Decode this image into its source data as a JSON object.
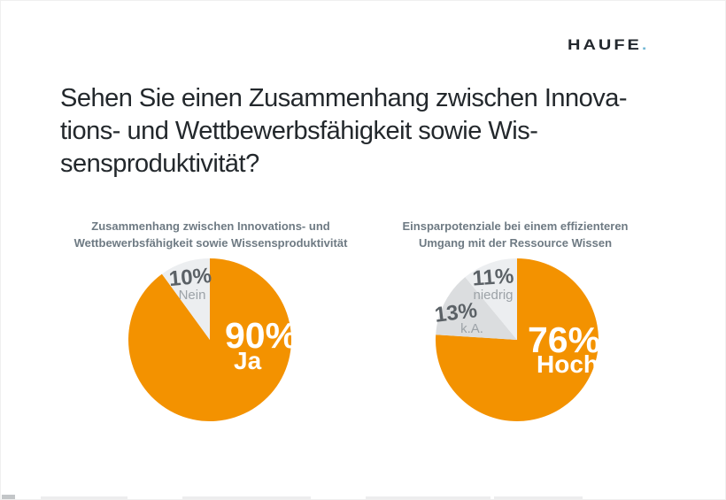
{
  "logo": {
    "text": "Haufe",
    "dot": "."
  },
  "title": {
    "lines": [
      "Sehen Sie einen Zusammenhang zwischen Innova-",
      "tions- und Wettbewerbsfähigkeit sowie Wis-",
      "sensproduktivität?"
    ]
  },
  "colors": {
    "orange": "#F39200",
    "gray_light": "#ECEEF0",
    "gray_mid": "#DBDDDF",
    "title_text": "#23282C",
    "heading_text": "#6E7A83",
    "label_dark": "#5B6166",
    "label_light": "#9CA2A7",
    "logo_dark": "#23282E",
    "logo_dot": "#74B8D5"
  },
  "chart_data": [
    {
      "type": "pie",
      "title_lines": [
        "Zusammenhang zwischen Innovations- und",
        "Wettbewerbsfähigkeit sowie Wissensproduktivität"
      ],
      "start_angle_deg": 0,
      "direction": "clockwise-from-top",
      "slices": [
        {
          "name": "Ja",
          "value": 90,
          "display": "90%",
          "label": "Ja",
          "color": "orange"
        },
        {
          "name": "Nein",
          "value": 10,
          "display": "10%",
          "label": "Nein",
          "color": "gray_light"
        }
      ]
    },
    {
      "type": "pie",
      "title_lines": [
        "Einsparpotenziale bei einem effizienteren",
        "Umgang mit der Ressource Wissen"
      ],
      "start_angle_deg": 0,
      "direction": "clockwise-from-top",
      "slices": [
        {
          "name": "Hoch",
          "value": 76,
          "display": "76%",
          "label": "Hoch",
          "color": "orange"
        },
        {
          "name": "k.A.",
          "value": 13,
          "display": "13%",
          "label": "k.A.",
          "color": "gray_mid"
        },
        {
          "name": "niedrig",
          "value": 11,
          "display": "11%",
          "label": "niedrig",
          "color": "gray_light"
        }
      ]
    }
  ]
}
